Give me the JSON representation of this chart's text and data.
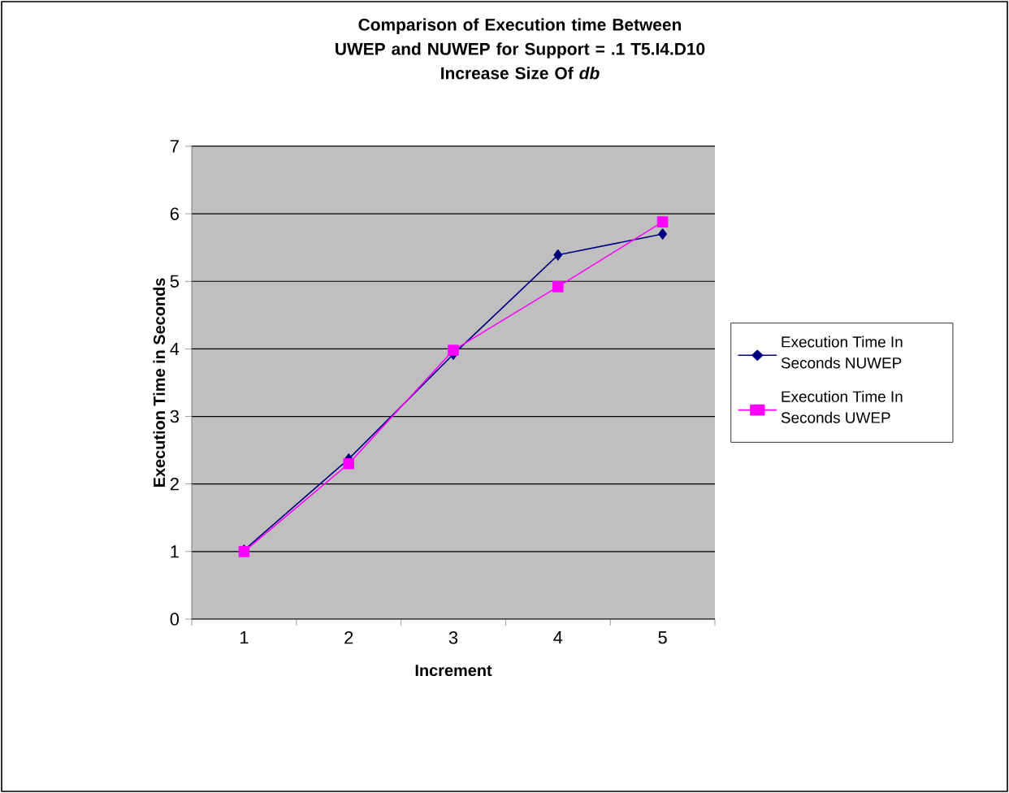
{
  "chart_data": {
    "type": "line",
    "title": "Comparison of Execution time Between UWEP and NUWEP for Support = .1   T5.I4.D10",
    "subtitle": "Increase Size Of *db*",
    "xlabel": "Increment",
    "ylabel": "Execution Time in Seconds",
    "categories": [
      "1",
      "2",
      "3",
      "4",
      "5"
    ],
    "series": [
      {
        "name": "Execution Time In Seconds NUWEP",
        "color": "#000080",
        "marker": "diamond",
        "values": [
          1.02,
          2.37,
          3.92,
          5.39,
          5.7
        ]
      },
      {
        "name": "Execution Time In Seconds UWEP",
        "color": "#ff00ff",
        "marker": "square",
        "values": [
          1.0,
          2.3,
          3.98,
          4.92,
          5.88
        ]
      }
    ],
    "ylim": [
      0,
      7
    ],
    "yticks": [
      0,
      1,
      2,
      3,
      4,
      5,
      6,
      7
    ],
    "grid": "y",
    "legend": "right",
    "line_style": "solid"
  }
}
